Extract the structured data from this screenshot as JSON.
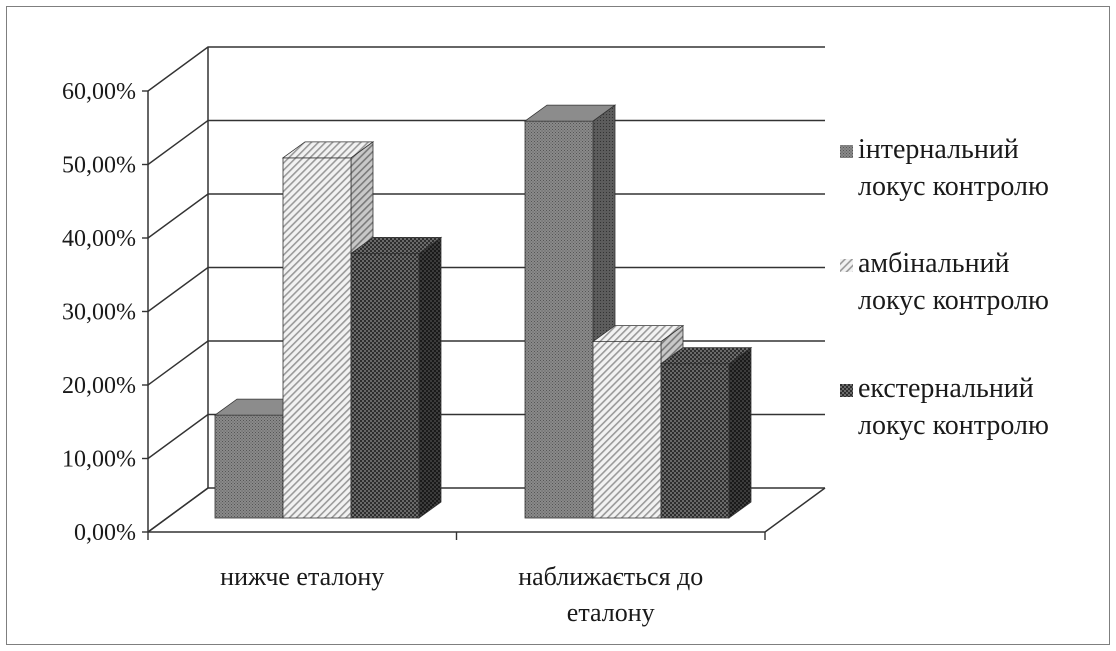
{
  "chart_data": {
    "type": "bar",
    "style": "3d-clustered-column",
    "categories": [
      "нижче еталону",
      "наближається до еталону"
    ],
    "series": [
      {
        "name": "інтернальний локус контролю",
        "values": [
          0.14,
          0.54
        ],
        "pattern": "dense-dot",
        "color": "#707070"
      },
      {
        "name": "амбінальний локус контролю",
        "values": [
          0.49,
          0.24
        ],
        "pattern": "diagonal-hatch",
        "color": "#d9d9d9"
      },
      {
        "name": "екстернальний локус контролю",
        "values": [
          0.36,
          0.21
        ],
        "pattern": "checker",
        "color": "#4a4a4a"
      }
    ],
    "ylim": [
      0,
      0.6
    ],
    "yticks": [
      "0,00%",
      "10,00%",
      "20,00%",
      "30,00%",
      "40,00%",
      "50,00%",
      "60,00%"
    ],
    "legend_lines": [
      [
        "інтернальний",
        "локус контролю"
      ],
      [
        "амбінальний",
        "локус контролю"
      ],
      [
        "екстернальний",
        "локус контролю"
      ]
    ],
    "category_lines": [
      [
        "нижче еталону"
      ],
      [
        "наближається до",
        "еталону"
      ]
    ],
    "grid": true,
    "legend_position": "right"
  }
}
